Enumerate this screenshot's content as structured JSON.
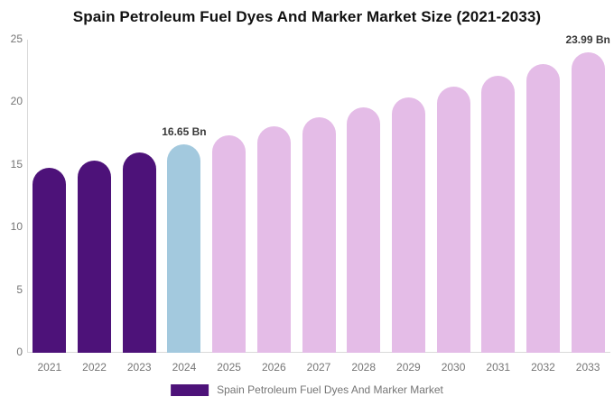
{
  "title": "Spain Petroleum Fuel Dyes And Marker Market Size (2021-2033)",
  "legend": {
    "label": "Spain Petroleum Fuel Dyes And Marker Market"
  },
  "colors": {
    "historical_bar": "#4D1279",
    "highlight_bar": "#A3C9DE",
    "forecast_bar": "#E4BCE7",
    "axis_line": "#D9D9D9",
    "tick_text": "#757575",
    "annotation_text": "#3A3A3A",
    "title_text": "#111111"
  },
  "chart_data": {
    "type": "bar",
    "title": "Spain Petroleum Fuel Dyes And Marker Market Size (2021-2033)",
    "categories": [
      "2021",
      "2022",
      "2023",
      "2024",
      "2025",
      "2026",
      "2027",
      "2028",
      "2029",
      "2030",
      "2031",
      "2032",
      "2033"
    ],
    "values": [
      14.74,
      15.35,
      15.99,
      16.65,
      17.34,
      18.06,
      18.81,
      19.59,
      20.4,
      21.24,
      22.12,
      23.04,
      23.99
    ],
    "unit": "Bn",
    "bar_styles": [
      "historical",
      "historical",
      "historical",
      "highlight",
      "forecast",
      "forecast",
      "forecast",
      "forecast",
      "forecast",
      "forecast",
      "forecast",
      "forecast",
      "forecast"
    ],
    "annotations": [
      {
        "category": "2024",
        "text": "16.65 Bn"
      },
      {
        "category": "2033",
        "text": "23.99 Bn"
      }
    ],
    "xlabel": "",
    "ylabel": "",
    "ylim": [
      0,
      25
    ],
    "yticks": [
      0,
      5,
      10,
      15,
      20,
      25
    ],
    "grid": false,
    "legend_position": "bottom",
    "legend_entries": [
      "Spain Petroleum Fuel Dyes And Marker Market"
    ]
  }
}
